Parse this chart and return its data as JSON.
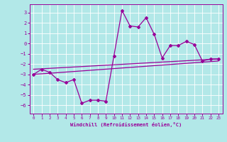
{
  "xlabel": "Windchill (Refroidissement éolien,°C)",
  "bg_color": "#b2e8e8",
  "grid_color": "#ffffff",
  "line_color": "#990099",
  "hours": [
    0,
    1,
    2,
    3,
    4,
    5,
    6,
    7,
    8,
    9,
    10,
    11,
    12,
    13,
    14,
    15,
    16,
    17,
    18,
    19,
    20,
    21,
    22,
    23
  ],
  "windchill": [
    -3.0,
    -2.5,
    -2.8,
    -3.5,
    -3.8,
    -3.5,
    -5.8,
    -5.5,
    -5.5,
    -5.6,
    -1.2,
    3.2,
    1.7,
    1.6,
    2.5,
    0.9,
    -1.4,
    -0.2,
    -0.2,
    0.2,
    -0.1,
    -1.7,
    -1.5,
    -1.5
  ],
  "trend1_x": [
    0,
    23
  ],
  "trend1_y": [
    -2.5,
    -1.5
  ],
  "trend2_x": [
    0,
    23
  ],
  "trend2_y": [
    -3.0,
    -1.7
  ],
  "ylim": [
    -6.8,
    3.8
  ],
  "yticks": [
    -6,
    -5,
    -4,
    -3,
    -2,
    -1,
    0,
    1,
    2,
    3
  ],
  "xticks": [
    0,
    1,
    2,
    3,
    4,
    5,
    6,
    7,
    8,
    9,
    10,
    11,
    12,
    13,
    14,
    15,
    16,
    17,
    18,
    19,
    20,
    21,
    22,
    23
  ]
}
